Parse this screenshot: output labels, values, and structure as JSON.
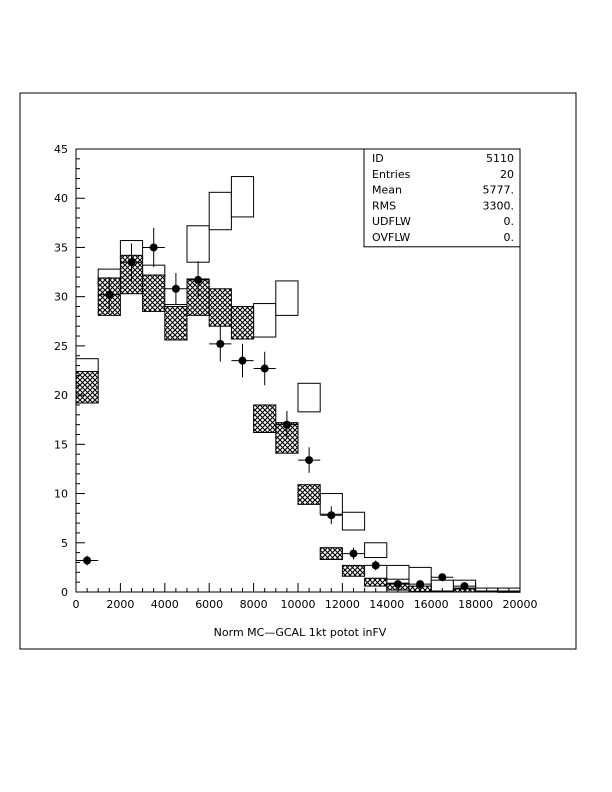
{
  "chart_data": {
    "type": "histogram",
    "xlabel": "Norm MC—GCAL  1kt potot inFV",
    "ylabel": "",
    "title": "",
    "xlim": [
      0,
      20000
    ],
    "ylim": [
      0,
      45
    ],
    "x_ticks": [
      0,
      2000,
      4000,
      6000,
      8000,
      10000,
      12000,
      14000,
      16000,
      18000,
      20000
    ],
    "y_ticks": [
      0,
      5,
      10,
      15,
      20,
      25,
      30,
      35,
      40,
      45
    ],
    "bin_width": 1000,
    "bin_centers": [
      500,
      1500,
      2500,
      3500,
      4500,
      5500,
      6500,
      7500,
      8500,
      9500,
      10500,
      11500,
      12500,
      13500,
      14500,
      15500,
      16500,
      17500,
      18500,
      19500
    ],
    "stats": [
      {
        "label": "ID",
        "value": "5110"
      },
      {
        "label": "Entries",
        "value": "20"
      },
      {
        "label": "Mean",
        "value": "5777."
      },
      {
        "label": "RMS",
        "value": "3300."
      },
      {
        "label": "UDFLW",
        "value": "0."
      },
      {
        "label": "OVFLW",
        "value": "0."
      }
    ],
    "series": [
      {
        "style": "open-box",
        "low": [
          22.2,
          31.2,
          33.8,
          32.0,
          28.5,
          33.5,
          36.8,
          38.1,
          25.9,
          28.1,
          18.3,
          7.9,
          6.3,
          3.5,
          1.3,
          0.4,
          0.1,
          0.4,
          0.0,
          0.1
        ],
        "high": [
          23.7,
          32.8,
          35.7,
          33.2,
          29.2,
          37.2,
          40.6,
          42.2,
          29.3,
          31.6,
          21.2,
          10.0,
          8.1,
          5.0,
          2.7,
          2.5,
          1.2,
          1.2,
          0.4,
          0.4
        ]
      },
      {
        "style": "hatched-box",
        "low": [
          19.2,
          28.1,
          30.3,
          28.5,
          25.6,
          28.1,
          27.0,
          25.7,
          16.2,
          14.1,
          8.9,
          3.3,
          1.6,
          0.6,
          0.2,
          0.05,
          0.0,
          0.0,
          0.0,
          0.0
        ],
        "high": [
          22.4,
          31.9,
          34.2,
          32.2,
          29.0,
          31.8,
          30.8,
          29.0,
          19.0,
          17.2,
          10.9,
          4.5,
          2.7,
          1.4,
          0.9,
          0.6,
          0.1,
          0.3,
          0.1,
          0.05
        ]
      },
      {
        "style": "points",
        "values": [
          3.2,
          30.2,
          33.5,
          35.0,
          30.8,
          31.7,
          25.2,
          23.5,
          22.7,
          17.0,
          13.4,
          7.8,
          3.9,
          2.7,
          0.8,
          0.8,
          1.5,
          0.6,
          null,
          null
        ],
        "errors": [
          0.5,
          1.8,
          1.9,
          2.0,
          1.6,
          1.9,
          1.8,
          1.7,
          1.7,
          1.4,
          1.3,
          0.9,
          0.6,
          0.5,
          0.3,
          0.3,
          0.3,
          0.2,
          null,
          null
        ]
      }
    ]
  }
}
